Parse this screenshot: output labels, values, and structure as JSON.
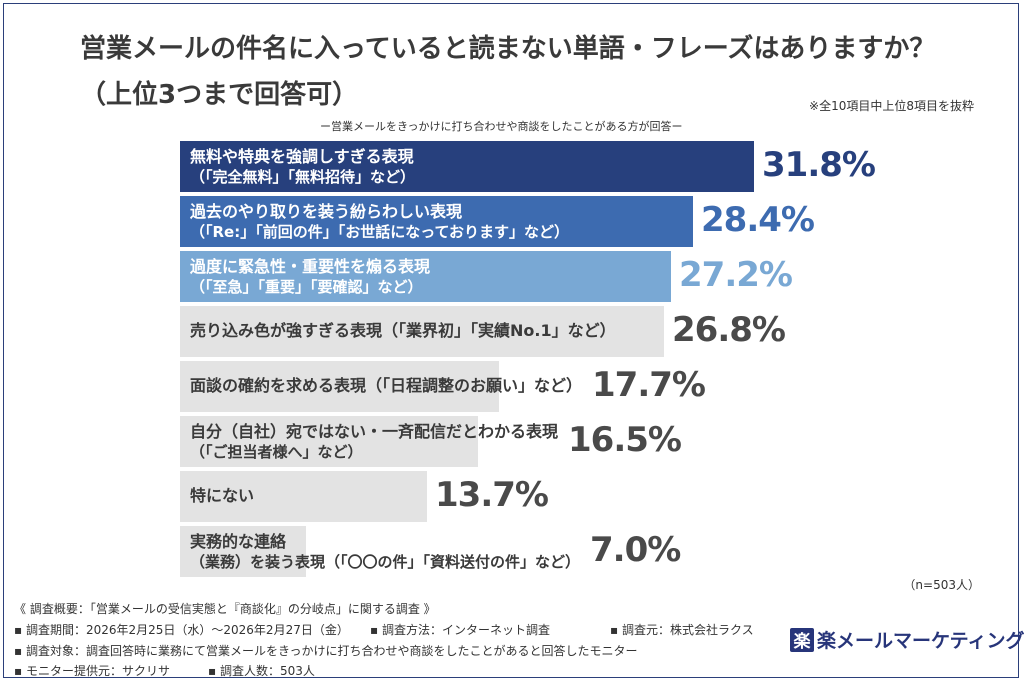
{
  "title_line1": "営業メールの件名に入っていると読まない単語・フレーズはありますか？",
  "title_line2": "（上位3つまで回答可）",
  "note": "※全10項目中上位8項目を抜粋",
  "subtitle": "ー営業メールをきっかけに打ち合わせや商談をしたことがある方が回答ー",
  "n_label": "（n=503人）",
  "colors": {
    "rank1": "#27407d",
    "rank2": "#3d6bb0",
    "rank3": "#79a8d4",
    "other": "#e3e3e3",
    "value_rank1": "#27407d",
    "value_rank2": "#3d6bb0",
    "value_rank3": "#79a8d4",
    "value_other": "#4a4a4a"
  },
  "chart_data": {
    "type": "bar",
    "orientation": "horizontal",
    "unit": "%",
    "xlim": [
      0,
      31.8
    ],
    "categories": [
      "無料や特典を強調しすぎる表現（「完全無料」「無料招待」など）",
      "過去のやり取りを装う紛らわしい表現（「Re:」「前回の件」「お世話になっております」など）",
      "過度に緊急性・重要性を煽る表現（「至急」「重要」「要確認」など）",
      "売り込み色が強すぎる表現（「業界初」「実績No.1」など）",
      "面談の確約を求める表現（「日程調整のお願い」など）",
      "自分（自社）宛ではない・一斉配信だとわかる表現（「ご担当者様へ」など）",
      "特にない",
      "実務的な連絡（業務）を装う表現（「〇〇の件」「資料送付の件」など）"
    ],
    "values": [
      31.8,
      28.4,
      27.2,
      26.8,
      17.7,
      16.5,
      13.7,
      7.0
    ],
    "bars": [
      {
        "line1": "無料や特典を強調しすぎる表現",
        "line2": "（「完全無料」「無料招待」など）",
        "value_label": "31.8%",
        "style": "rank1"
      },
      {
        "line1": "過去のやり取りを装う紛らわしい表現",
        "line2": "（「Re:」「前回の件」「お世話になっております」など）",
        "value_label": "28.4%",
        "style": "rank2"
      },
      {
        "line1": "過度に緊急性・重要性を煽る表現",
        "line2": "（「至急」「重要」「要確認」など）",
        "value_label": "27.2%",
        "style": "rank3"
      },
      {
        "line1": "売り込み色が強すぎる表現（「業界初」「実績No.1」など）",
        "line2": "",
        "value_label": "26.8%",
        "style": "other"
      },
      {
        "line1": "面談の確約を求める表現（「日程調整のお願い」など）",
        "line2": "",
        "value_label": "17.7%",
        "style": "other"
      },
      {
        "line1": "自分（自社）宛ではない・一斉配信だとわかる表現",
        "line2": "（「ご担当者様へ」など）",
        "value_label": "16.5%",
        "style": "other"
      },
      {
        "line1": "特にない",
        "line2": "",
        "value_label": "13.7%",
        "style": "other"
      },
      {
        "line1": "実務的な連絡",
        "line2": "（業務）を装う表現（「〇〇の件」「資料送付の件」など）",
        "value_label": "7.0%",
        "style": "other"
      }
    ]
  },
  "footer": {
    "line1": "《 調査概要：「営業メールの受信実態と『商談化』の分岐点」に関する調査 》",
    "period": "▪ 調査期間：2026年2月25日（水）〜2026年2月27日（金）",
    "method": "▪ 調査方法：インターネット調査",
    "source": "▪ 調査元：株式会社ラクス",
    "target": "▪ 調査対象：調査回答時に業務にて営業メールをきっかけに打ち合わせや商談をしたことがあると回答したモニター",
    "provider": "▪ モニター提供元：サクリサ",
    "count": "▪ 調査人数：503人"
  },
  "logo": {
    "mark": "楽",
    "text": "楽メールマーケティング"
  }
}
